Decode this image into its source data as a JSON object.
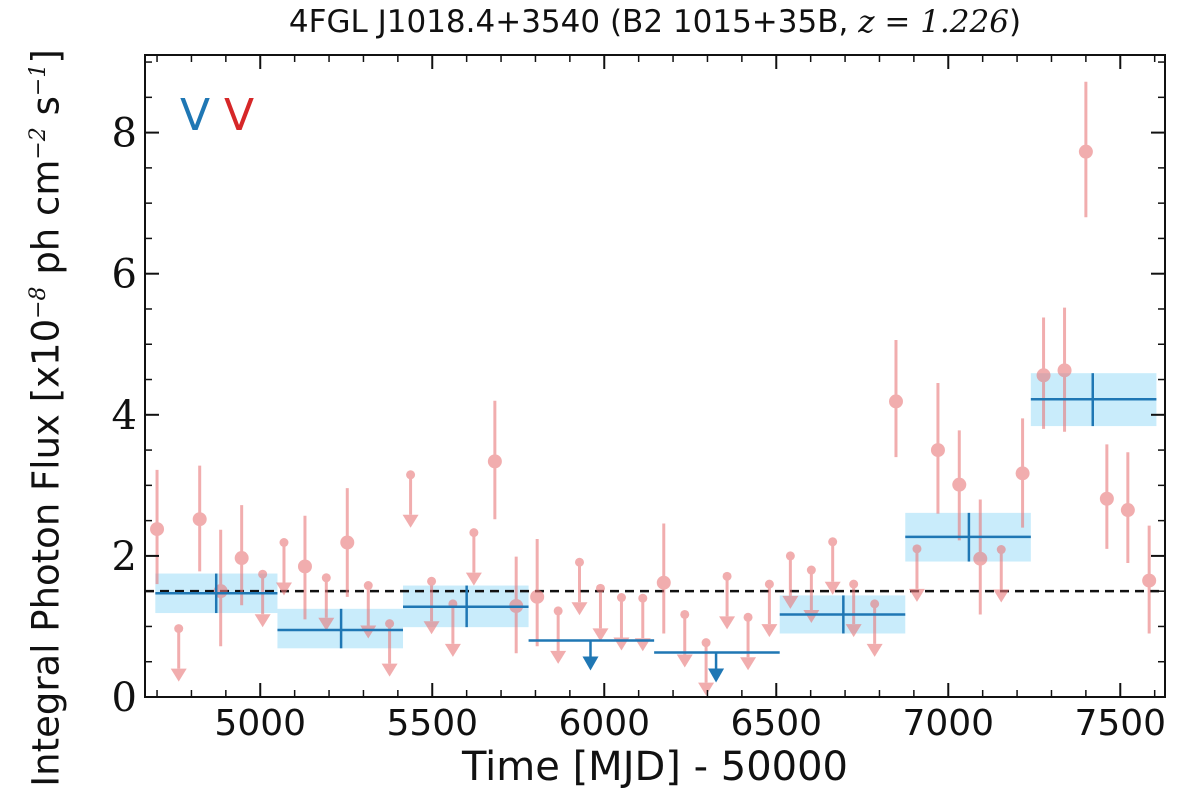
{
  "chart_data": {
    "type": "scatter",
    "title_text": "4FGL J1018.4+3540 (B2 1015+35B, ",
    "title_math": "z = 1.226",
    "title_close": ")",
    "xlabel": "Time [MJD] - 50000",
    "ylabel_pre": "Integral Photon Flux [x10",
    "ylabel_exp1": "−8",
    "ylabel_mid": " ph cm",
    "ylabel_exp2": "−2",
    "ylabel_mid2": " s",
    "ylabel_exp3": "−1",
    "ylabel_post": "]",
    "xlim": [
      4665,
      7630
    ],
    "ylim": [
      0,
      9.1
    ],
    "xticks": [
      5000,
      5500,
      6000,
      6500,
      7000,
      7500
    ],
    "yticks": [
      0,
      2,
      4,
      6,
      8
    ],
    "legend_marks": [
      {
        "text": "V",
        "color": "#1f77b4"
      },
      {
        "text": "V",
        "color": "#d62728"
      }
    ],
    "mean_flux": 1.5,
    "colors": {
      "points": "#e8787a",
      "bins": "#1f77b4",
      "bin_fill": "#c9ecfb",
      "mean_line": "#111111"
    },
    "series": [
      {
        "name": "monthly",
        "points": [
          {
            "x": 4700,
            "y": 2.38,
            "lo": 1.6,
            "hi": 3.22
          },
          {
            "x": 4763,
            "y": 0.97,
            "ul": true
          },
          {
            "x": 4824,
            "y": 2.52,
            "lo": 1.78,
            "hi": 3.28
          },
          {
            "x": 4885,
            "y": 1.5,
            "lo": 0.72,
            "hi": 2.37
          },
          {
            "x": 4946,
            "y": 1.97,
            "lo": 1.3,
            "hi": 2.72
          },
          {
            "x": 5007,
            "y": 1.74,
            "ul": true
          },
          {
            "x": 5069,
            "y": 2.19,
            "ul": true
          },
          {
            "x": 5130,
            "y": 1.85,
            "lo": 1.1,
            "hi": 2.57
          },
          {
            "x": 5192,
            "y": 1.69,
            "ul": true
          },
          {
            "x": 5253,
            "y": 2.19,
            "lo": 1.42,
            "hi": 2.96
          },
          {
            "x": 5314,
            "y": 1.58,
            "ul": true
          },
          {
            "x": 5376,
            "y": 1.04,
            "ul": true
          },
          {
            "x": 5437,
            "y": 3.15,
            "ul": true
          },
          {
            "x": 5498,
            "y": 1.64,
            "ul": true
          },
          {
            "x": 5560,
            "y": 1.32,
            "ul": true
          },
          {
            "x": 5621,
            "y": 2.33,
            "ul": true
          },
          {
            "x": 5682,
            "y": 3.34,
            "lo": 2.52,
            "hi": 4.2
          },
          {
            "x": 5744,
            "y": 1.29,
            "lo": 0.62,
            "hi": 1.99
          },
          {
            "x": 5805,
            "y": 1.42,
            "lo": 0.72,
            "hi": 2.24
          },
          {
            "x": 5866,
            "y": 1.22,
            "ul": true
          },
          {
            "x": 5928,
            "y": 1.91,
            "ul": true
          },
          {
            "x": 5989,
            "y": 1.54,
            "ul": true
          },
          {
            "x": 6050,
            "y": 1.41,
            "ul": true
          },
          {
            "x": 6112,
            "y": 1.4,
            "ul": true
          },
          {
            "x": 6173,
            "y": 1.62,
            "lo": 0.9,
            "hi": 2.46
          },
          {
            "x": 6234,
            "y": 1.17,
            "ul": true
          },
          {
            "x": 6296,
            "y": 0.77,
            "ul": true
          },
          {
            "x": 6357,
            "y": 1.71,
            "ul": true
          },
          {
            "x": 6418,
            "y": 1.13,
            "ul": true
          },
          {
            "x": 6480,
            "y": 1.6,
            "ul": true
          },
          {
            "x": 6541,
            "y": 2.0,
            "ul": true
          },
          {
            "x": 6602,
            "y": 1.8,
            "ul": true
          },
          {
            "x": 6664,
            "y": 2.2,
            "ul": true
          },
          {
            "x": 6725,
            "y": 1.6,
            "ul": true
          },
          {
            "x": 6786,
            "y": 1.32,
            "ul": true
          },
          {
            "x": 6848,
            "y": 4.19,
            "lo": 3.4,
            "hi": 5.06
          },
          {
            "x": 6909,
            "y": 2.1,
            "ul": true
          },
          {
            "x": 6970,
            "y": 3.5,
            "lo": 2.6,
            "hi": 4.45
          },
          {
            "x": 7032,
            "y": 3.01,
            "lo": 2.22,
            "hi": 3.78
          },
          {
            "x": 7093,
            "y": 1.96,
            "lo": 1.17,
            "hi": 2.8
          },
          {
            "x": 7154,
            "y": 2.09,
            "ul": true
          },
          {
            "x": 7216,
            "y": 3.17,
            "lo": 2.4,
            "hi": 3.95
          },
          {
            "x": 7277,
            "y": 4.56,
            "lo": 3.8,
            "hi": 5.38
          },
          {
            "x": 7338,
            "y": 4.63,
            "lo": 3.76,
            "hi": 5.52
          },
          {
            "x": 7400,
            "y": 7.73,
            "lo": 6.8,
            "hi": 8.72
          },
          {
            "x": 7461,
            "y": 2.81,
            "lo": 2.1,
            "hi": 3.58
          },
          {
            "x": 7522,
            "y": 2.65,
            "lo": 1.9,
            "hi": 3.47
          },
          {
            "x": 7584,
            "y": 1.65,
            "lo": 0.9,
            "hi": 2.43
          }
        ]
      },
      {
        "name": "bins",
        "bins": [
          {
            "x0": 4695,
            "x1": 5050,
            "xc": 4872,
            "y": 1.47,
            "lo": 1.19,
            "hi": 1.75
          },
          {
            "x0": 5050,
            "x1": 5415,
            "xc": 5235,
            "y": 0.95,
            "lo": 0.69,
            "hi": 1.25
          },
          {
            "x0": 5415,
            "x1": 5780,
            "xc": 5600,
            "y": 1.28,
            "lo": 0.99,
            "hi": 1.58
          },
          {
            "x0": 5780,
            "x1": 6145,
            "xc": 5960,
            "y": 0.8,
            "ul": true
          },
          {
            "x0": 6145,
            "x1": 6510,
            "xc": 6325,
            "y": 0.63,
            "ul": true
          },
          {
            "x0": 6510,
            "x1": 6875,
            "xc": 6695,
            "y": 1.17,
            "lo": 0.9,
            "hi": 1.44
          },
          {
            "x0": 6875,
            "x1": 7240,
            "xc": 7060,
            "y": 2.27,
            "lo": 1.92,
            "hi": 2.61
          },
          {
            "x0": 7240,
            "x1": 7605,
            "xc": 7420,
            "y": 4.22,
            "lo": 3.84,
            "hi": 4.59
          }
        ]
      }
    ]
  }
}
